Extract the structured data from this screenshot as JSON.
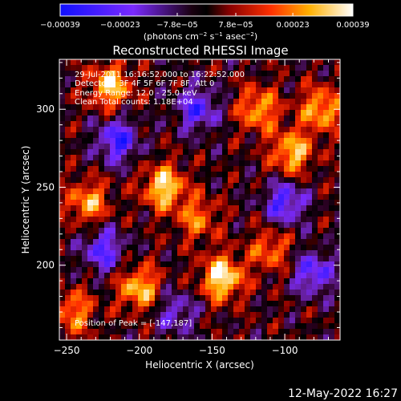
{
  "chart_data": {
    "type": "heatmap",
    "title": "Reconstructed RHESSI Image",
    "xlabel": "Heliocentric X (arcsec)",
    "ylabel": "Heliocentric Y (arcsec)",
    "xlim": [
      -255,
      -62
    ],
    "ylim": [
      152,
      332
    ],
    "x_ticks": [
      -250,
      -200,
      -150,
      -100
    ],
    "x_tick_labels": [
      "−250",
      "−200",
      "−150",
      "−100"
    ],
    "y_ticks": [
      200,
      250,
      300
    ],
    "y_tick_labels": [
      "200",
      "250",
      "300"
    ],
    "colorbar": {
      "min": -0.00039,
      "max": 0.00039,
      "ticks": [
        -0.00039,
        -0.00023,
        -7.8e-05,
        7.8e-05,
        0.00023,
        0.00039
      ],
      "tick_labels": [
        "−0.00039",
        "−0.00023",
        "−7.8e−05",
        "7.8e−05",
        "0.00023",
        "0.00039"
      ],
      "units_prefix": "(photons cm",
      "units_exp1": "−2",
      "units_mid1": " s",
      "units_exp2": "−1",
      "units_mid2": " asec",
      "units_exp3": "−2",
      "units_suffix": ")",
      "colormap": "blue-black-red-yellow-white"
    },
    "annotations": {
      "time_range": "29-Jul-2011 16:16:52.000 to 16:22:52.000",
      "detectors": "Detectors: 3F 4F 5F 6F 7F 8F, Att 0",
      "energy": "Energy Range: 12.0 - 25.0 keV",
      "clean": "Clean    Total counts: 1.18E+04",
      "peak": "Position of Peak = [-147,187]"
    },
    "peak_position": [
      -147,
      187
    ],
    "bright_sources": [
      {
        "x": -143,
        "y": 192,
        "intensity": 1.0
      },
      {
        "x": -183,
        "y": 250,
        "intensity": 0.9
      },
      {
        "x": -220,
        "y": 315,
        "intensity": 0.85
      },
      {
        "x": -95,
        "y": 272,
        "intensity": 0.8
      },
      {
        "x": -75,
        "y": 300,
        "intensity": 0.75
      },
      {
        "x": -118,
        "y": 300,
        "intensity": 0.7
      },
      {
        "x": -200,
        "y": 185,
        "intensity": 0.8
      },
      {
        "x": -235,
        "y": 240,
        "intensity": 0.7
      },
      {
        "x": -160,
        "y": 230,
        "intensity": 0.55
      },
      {
        "x": -110,
        "y": 210,
        "intensity": 0.55
      },
      {
        "x": -245,
        "y": 170,
        "intensity": 0.6
      }
    ],
    "dim_regions": [
      {
        "x": -215,
        "y": 280,
        "intensity": -0.8
      },
      {
        "x": -160,
        "y": 300,
        "intensity": -0.7
      },
      {
        "x": -100,
        "y": 240,
        "intensity": -0.75
      },
      {
        "x": -225,
        "y": 210,
        "intensity": -0.7
      },
      {
        "x": -80,
        "y": 195,
        "intensity": -0.7
      },
      {
        "x": -175,
        "y": 170,
        "intensity": -0.5
      }
    ]
  },
  "footer": {
    "date": "12-May-2022 16:27"
  }
}
